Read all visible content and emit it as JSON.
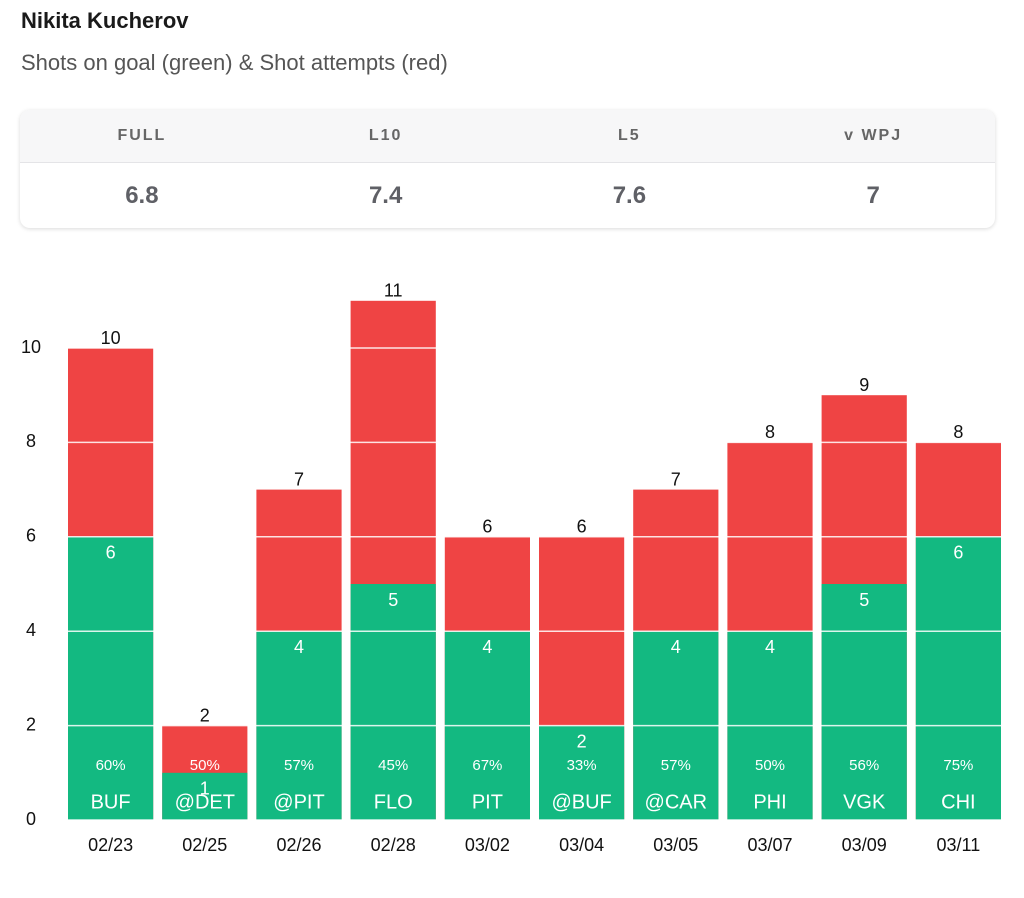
{
  "header": {
    "title": "Nikita Kucherov",
    "subtitle": "Shots on goal (green) & Shot attempts (red)"
  },
  "stats": {
    "columns": [
      {
        "label": "FULL",
        "value": 6.8
      },
      {
        "label": "L10",
        "value": 7.4
      },
      {
        "label": "L5",
        "value": 7.6
      },
      {
        "label": "v WPJ",
        "value": 7
      }
    ]
  },
  "chart_data": {
    "type": "bar",
    "overlay": true,
    "categories": [
      "02/23",
      "02/25",
      "02/26",
      "02/28",
      "03/02",
      "03/04",
      "03/05",
      "03/07",
      "03/09",
      "03/11"
    ],
    "opponents": [
      "BUF",
      "@DET",
      "@PIT",
      "FLO",
      "PIT",
      "@BUF",
      "@CAR",
      "PHI",
      "VGK",
      "CHI"
    ],
    "series": [
      {
        "color": "#ef4444",
        "values": [
          10,
          2,
          7,
          11,
          6,
          6,
          7,
          8,
          9,
          8
        ]
      },
      {
        "color": "#13b981",
        "values": [
          6,
          1,
          4,
          5,
          4,
          2,
          4,
          4,
          5,
          6
        ]
      }
    ],
    "pct_labels": [
      "60%",
      "50%",
      "57%",
      "45%",
      "67%",
      "33%",
      "57%",
      "50%",
      "56%",
      "75%"
    ],
    "ylim": [
      0,
      12
    ],
    "yticks": [
      0,
      2,
      4,
      6,
      8,
      10
    ],
    "grid": true
  }
}
